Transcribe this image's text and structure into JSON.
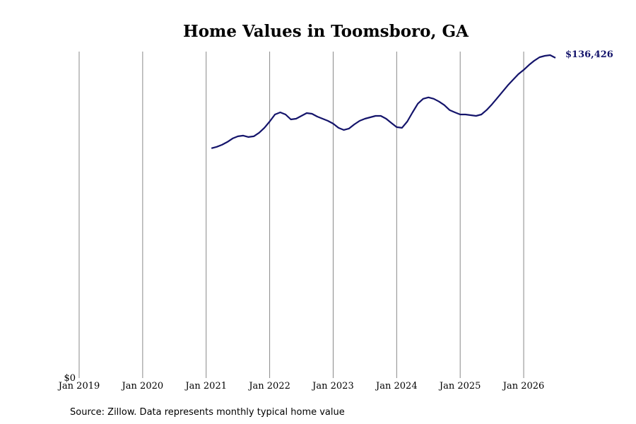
{
  "chart_data": {
    "type": "line",
    "title": "Home Values in Toomsboro, GA",
    "source": "Source: Zillow. Data represents monthly typical home value",
    "color": "#14146b",
    "x": [
      "2021-02",
      "2021-03",
      "2021-04",
      "2021-05",
      "2021-06",
      "2021-07",
      "2021-08",
      "2021-09",
      "2021-10",
      "2021-11",
      "2021-12",
      "2022-01",
      "2022-02",
      "2022-03",
      "2022-04",
      "2022-05",
      "2022-06",
      "2022-07",
      "2022-08",
      "2022-09",
      "2022-10",
      "2022-11",
      "2022-12",
      "2023-01",
      "2023-02",
      "2023-03",
      "2023-04",
      "2023-05",
      "2023-06",
      "2023-07",
      "2023-08",
      "2023-09",
      "2023-10",
      "2023-11",
      "2023-12",
      "2024-01",
      "2024-02",
      "2024-03",
      "2024-04",
      "2024-05",
      "2024-06",
      "2024-07",
      "2024-08",
      "2024-09",
      "2024-10",
      "2024-11",
      "2024-12",
      "2025-01",
      "2025-02",
      "2025-03",
      "2025-04",
      "2025-05",
      "2025-06",
      "2025-07",
      "2025-08",
      "2025-09",
      "2025-10",
      "2025-11",
      "2025-12",
      "2026-01",
      "2026-02",
      "2026-03",
      "2026-04",
      "2026-05",
      "2026-06",
      "2026-07"
    ],
    "values": [
      97900,
      98500,
      99400,
      100600,
      102100,
      103000,
      103300,
      102700,
      103000,
      104500,
      106600,
      109300,
      112300,
      113200,
      112300,
      110200,
      110500,
      111700,
      112900,
      112600,
      111400,
      110500,
      109600,
      108400,
      106600,
      105700,
      106300,
      108100,
      109600,
      110500,
      111100,
      111700,
      111700,
      110500,
      108700,
      106900,
      106600,
      109300,
      113200,
      116900,
      119000,
      119600,
      119000,
      117800,
      116300,
      114200,
      113200,
      112300,
      112300,
      112000,
      111700,
      112300,
      114200,
      116600,
      119300,
      122000,
      124700,
      127100,
      129500,
      131300,
      133400,
      135200,
      136700,
      137300,
      137600,
      136426
    ],
    "value_labels": [
      null,
      null,
      null,
      null,
      null,
      null,
      null,
      null,
      null,
      null,
      null,
      null,
      null,
      null,
      null,
      null,
      null,
      null,
      null,
      null,
      null,
      null,
      null,
      null,
      null,
      null,
      null,
      null,
      null,
      null,
      null,
      null,
      null,
      null,
      null,
      null,
      null,
      null,
      null,
      null,
      null,
      null,
      null,
      null,
      null,
      null,
      null,
      null,
      null,
      null,
      null,
      null,
      null,
      null,
      null,
      null,
      null,
      null,
      null,
      null,
      null,
      null,
      null,
      null,
      null,
      "$136,426"
    ],
    "xlim": [
      "2019-01",
      "2026-07"
    ],
    "xticks": [
      {
        "value": "2019-01",
        "label": "Jan 2019"
      },
      {
        "value": "2020-01",
        "label": "Jan 2020"
      },
      {
        "value": "2021-01",
        "label": "Jan 2021"
      },
      {
        "value": "2022-01",
        "label": "Jan 2022"
      },
      {
        "value": "2023-01",
        "label": "Jan 2023"
      },
      {
        "value": "2024-01",
        "label": "Jan 2024"
      },
      {
        "value": "2025-01",
        "label": "Jan 2025"
      },
      {
        "value": "2026-01",
        "label": "Jan 2026"
      }
    ],
    "ylim": [
      0,
      140000
    ],
    "yticks": [
      {
        "value": 0,
        "label": "$0"
      }
    ],
    "grid": true
  }
}
